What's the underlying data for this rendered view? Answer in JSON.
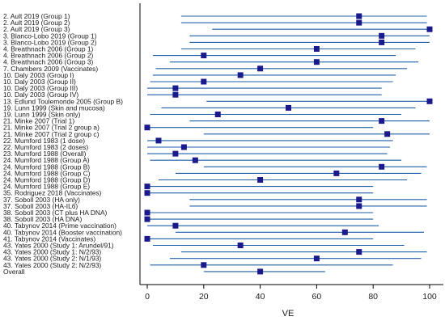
{
  "chart_data": {
    "type": "forest",
    "title": "",
    "xlabel": "VE",
    "ylabel": "",
    "xlim": [
      0,
      100
    ],
    "xticks": [
      0,
      20,
      40,
      60,
      80,
      100
    ],
    "grid": false,
    "legend": "none",
    "colors": {
      "ci_line": "#1f5fa8",
      "point": "#1a1a8c",
      "axis": "#000000"
    },
    "studies": [
      {
        "label": "2. Ault 2019 (Group 1)",
        "estimate": 75,
        "lower": 12,
        "upper": 99
      },
      {
        "label": "2. Ault 2019 (Group 2)",
        "estimate": 75,
        "lower": 12,
        "upper": 99
      },
      {
        "label": "2. Ault 2019 (Group 3)",
        "estimate": 100,
        "lower": 23,
        "upper": 100
      },
      {
        "label": "3. Blanco-Lobo 2019 (Group 1)",
        "estimate": 83,
        "lower": 15,
        "upper": 100
      },
      {
        "label": "3. Blanco-Lobo 2019 (Group 2)",
        "estimate": 83,
        "lower": 15,
        "upper": 100
      },
      {
        "label": "4. Breathnach 2006 (Group 1)",
        "estimate": 60,
        "lower": 12,
        "upper": 95
      },
      {
        "label": "4. Breathnach 2006 (Group 2)",
        "estimate": 20,
        "lower": 2,
        "upper": 88
      },
      {
        "label": "4. Breathnach 2006 (Group 3)",
        "estimate": 60,
        "lower": 8,
        "upper": 96
      },
      {
        "label": "7. Chambers 2009 (Vaccinates)",
        "estimate": 40,
        "lower": 3,
        "upper": 92
      },
      {
        "label": "10. Daly 2003 (Group I)",
        "estimate": 33,
        "lower": 2,
        "upper": 88
      },
      {
        "label": "10. Daly 2003 (Group II)",
        "estimate": 20,
        "lower": 1,
        "upper": 87
      },
      {
        "label": "10. Daly 2003 (Group III)",
        "estimate": 10,
        "lower": 0,
        "upper": 83
      },
      {
        "label": "10. Daly 2003 (Group IV)",
        "estimate": 10,
        "lower": 0,
        "upper": 83
      },
      {
        "label": "13. Edlund Toulemonde 2005 (Group B)",
        "estimate": 100,
        "lower": 21,
        "upper": 100
      },
      {
        "label": "19. Lunn 1999 (Skin and mucosa)",
        "estimate": 50,
        "lower": 5,
        "upper": 95
      },
      {
        "label": "19. Lunn 1999 (Skin only)",
        "estimate": 25,
        "lower": 1,
        "upper": 90
      },
      {
        "label": "21. Minke 2007 (Trial 1)",
        "estimate": 83,
        "lower": 15,
        "upper": 100
      },
      {
        "label": "21. Minke 2007 (Trial 2 group a)",
        "estimate": 0,
        "lower": 0,
        "upper": 80
      },
      {
        "label": "21. Minke 2007 (Trial 2 group c)",
        "estimate": 85,
        "lower": 20,
        "upper": 100
      },
      {
        "label": "22. Mumford 1983 (1 dose)",
        "estimate": 4,
        "lower": 0,
        "upper": 87
      },
      {
        "label": "22. Mumford 1983 (2 doses)",
        "estimate": 13,
        "lower": 0,
        "upper": 86
      },
      {
        "label": "23. Mumford 1988 (Overall)",
        "estimate": 10,
        "lower": 0,
        "upper": 85
      },
      {
        "label": "24. Mumford 1988 (Group A)",
        "estimate": 17,
        "lower": 1,
        "upper": 90
      },
      {
        "label": "24. Mumford 1988 (Group B)",
        "estimate": 83,
        "lower": 20,
        "upper": 99
      },
      {
        "label": "24. Mumford 1988 (Group C)",
        "estimate": 67,
        "lower": 10,
        "upper": 97
      },
      {
        "label": "24. Mumford 1988 (Group D)",
        "estimate": 40,
        "lower": 4,
        "upper": 92
      },
      {
        "label": "24. Mumford 1988 (Group E)",
        "estimate": 0,
        "lower": 0,
        "upper": 80
      },
      {
        "label": "35. Rodriguez 2018 (Vaccinates)",
        "estimate": 0,
        "lower": 0,
        "upper": 80
      },
      {
        "label": "37. Soboll 2003 (HA only)",
        "estimate": 75,
        "lower": 15,
        "upper": 99
      },
      {
        "label": "37. Soboll 2003 (HA-IL6)",
        "estimate": 75,
        "lower": 15,
        "upper": 99
      },
      {
        "label": "38. Soboll 2003 (CT plus HA DNA)",
        "estimate": 0,
        "lower": 0,
        "upper": 80
      },
      {
        "label": "38. Soboll 2003 (HA DNA)",
        "estimate": 0,
        "lower": 0,
        "upper": 80
      },
      {
        "label": "40. Tabynov 2014 (Prime vaccination)",
        "estimate": 10,
        "lower": 0,
        "upper": 82
      },
      {
        "label": "40. Tabynov 2014 (Booster vaccination)",
        "estimate": 70,
        "lower": 10,
        "upper": 98
      },
      {
        "label": "41. Tabynov 2014 (Vaccinates)",
        "estimate": 0,
        "lower": 0,
        "upper": 80
      },
      {
        "label": "43. Yates 2000 (Study 1: Arundel/91)",
        "estimate": 33,
        "lower": 2,
        "upper": 91
      },
      {
        "label": "43. Yates 2000 (Study 1: N/2/93)",
        "estimate": 75,
        "lower": 12,
        "upper": 99
      },
      {
        "label": "43. Yates 2000 (Study 2: N/1/93)",
        "estimate": 60,
        "lower": 8,
        "upper": 97
      },
      {
        "label": "43. Yates 2000 (Study 2: N/2/93)",
        "estimate": 20,
        "lower": 1,
        "upper": 87
      },
      {
        "label": "Overall",
        "estimate": 40,
        "lower": 20,
        "upper": 63
      }
    ]
  }
}
